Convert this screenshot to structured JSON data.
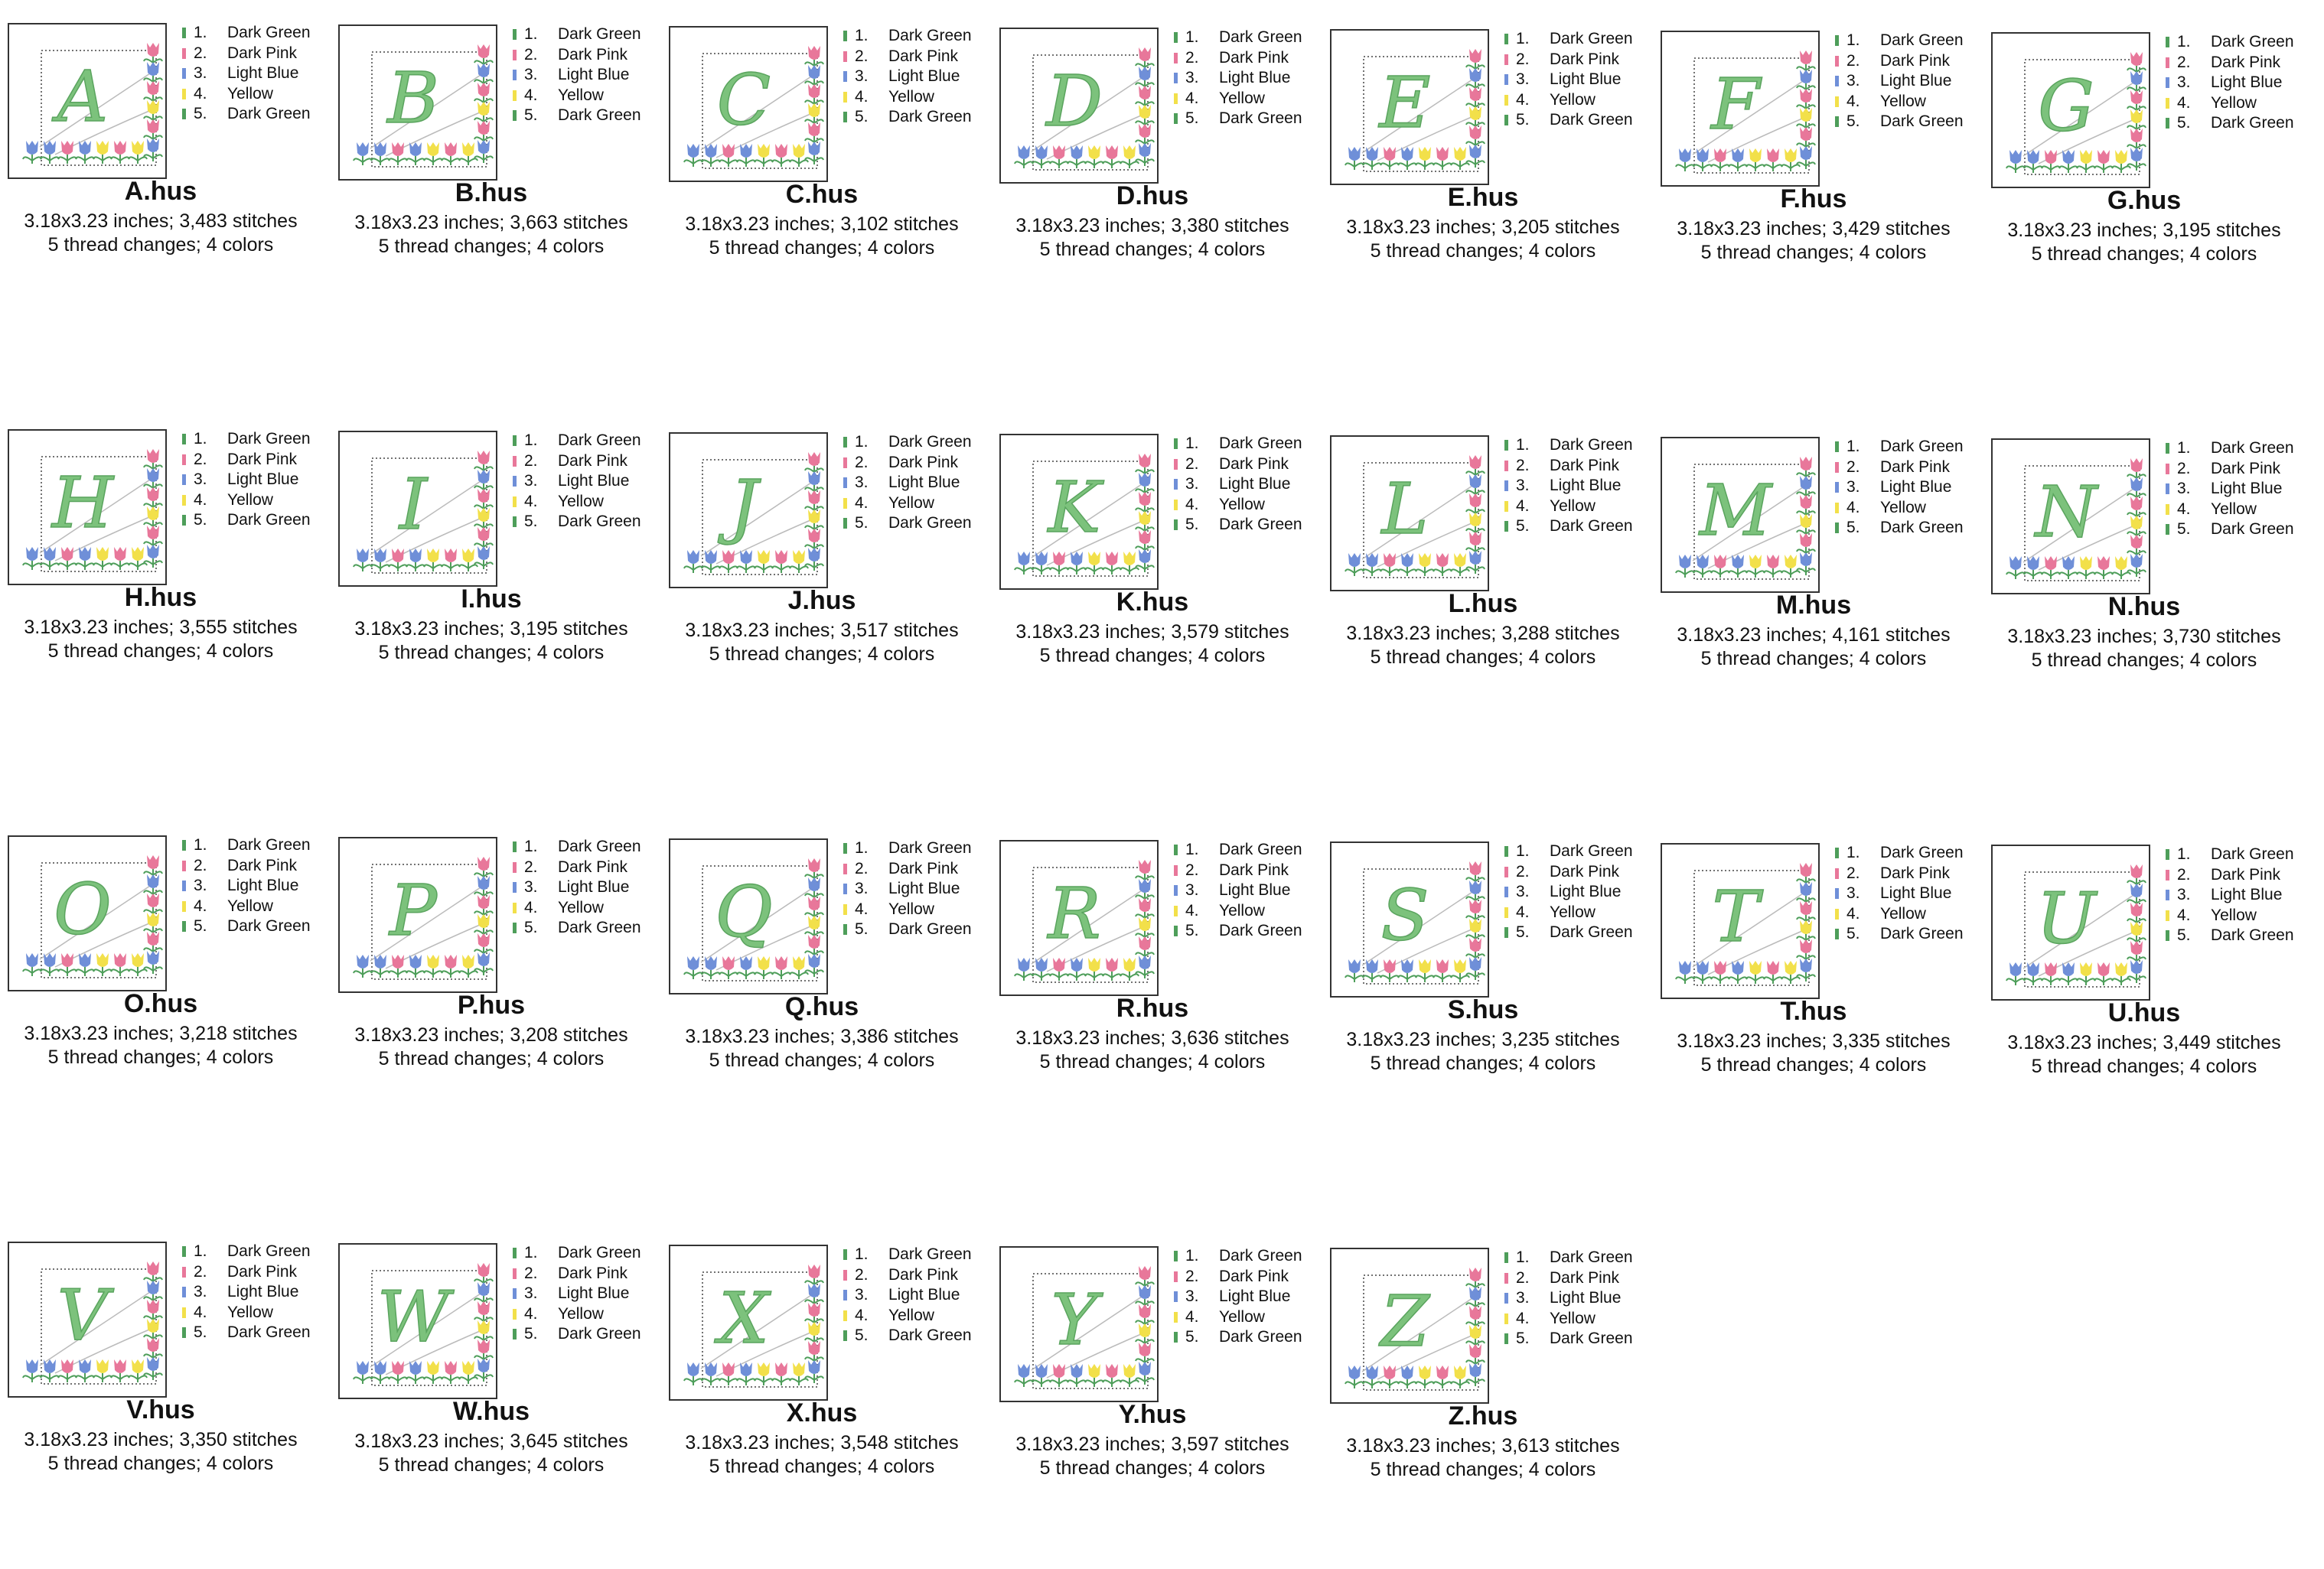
{
  "thread_palette": {
    "Dark Green": "#4e9e5a",
    "Dark Pink": "#e8779a",
    "Light Blue": "#6f8fd8",
    "Yellow": "#f2e04a"
  },
  "letter_color": "#7cc27c",
  "threads": [
    {
      "number": "1.",
      "name": "Dark Green"
    },
    {
      "number": "2.",
      "name": "Dark Pink"
    },
    {
      "number": "3.",
      "name": "Light Blue"
    },
    {
      "number": "4.",
      "name": "Yellow"
    },
    {
      "number": "5.",
      "name": "Dark Green"
    }
  ],
  "designs": [
    {
      "letter": "A",
      "file": "A.hus",
      "size_stitches": "3.18x3.23 inches; 3,483 stitches",
      "changes": "5 thread changes; 4 colors"
    },
    {
      "letter": "B",
      "file": "B.hus",
      "size_stitches": "3.18x3.23 inches; 3,663 stitches",
      "changes": "5 thread changes; 4 colors"
    },
    {
      "letter": "C",
      "file": "C.hus",
      "size_stitches": "3.18x3.23 inches; 3,102 stitches",
      "changes": "5 thread changes; 4 colors"
    },
    {
      "letter": "D",
      "file": "D.hus",
      "size_stitches": "3.18x3.23 inches; 3,380 stitches",
      "changes": "5 thread changes; 4 colors"
    },
    {
      "letter": "E",
      "file": "E.hus",
      "size_stitches": "3.18x3.23 inches; 3,205 stitches",
      "changes": "5 thread changes; 4 colors"
    },
    {
      "letter": "F",
      "file": "F.hus",
      "size_stitches": "3.18x3.23 inches; 3,429 stitches",
      "changes": "5 thread changes; 4 colors"
    },
    {
      "letter": "G",
      "file": "G.hus",
      "size_stitches": "3.18x3.23 inches; 3,195 stitches",
      "changes": "5 thread changes; 4 colors"
    },
    {
      "letter": "H",
      "file": "H.hus",
      "size_stitches": "3.18x3.23 inches; 3,555 stitches",
      "changes": "5 thread changes; 4 colors"
    },
    {
      "letter": "I",
      "file": "I.hus",
      "size_stitches": "3.18x3.23 inches; 3,195 stitches",
      "changes": "5 thread changes; 4 colors"
    },
    {
      "letter": "J",
      "file": "J.hus",
      "size_stitches": "3.18x3.23 inches; 3,517 stitches",
      "changes": "5 thread changes; 4 colors"
    },
    {
      "letter": "K",
      "file": "K.hus",
      "size_stitches": "3.18x3.23 inches; 3,579 stitches",
      "changes": "5 thread changes; 4 colors"
    },
    {
      "letter": "L",
      "file": "L.hus",
      "size_stitches": "3.18x3.23 inches; 3,288 stitches",
      "changes": "5 thread changes; 4 colors"
    },
    {
      "letter": "M",
      "file": "M.hus",
      "size_stitches": "3.18x3.23 inches; 4,161 stitches",
      "changes": "5 thread changes; 4 colors"
    },
    {
      "letter": "N",
      "file": "N.hus",
      "size_stitches": "3.18x3.23 inches; 3,730 stitches",
      "changes": "5 thread changes; 4 colors"
    },
    {
      "letter": "O",
      "file": "O.hus",
      "size_stitches": "3.18x3.23 inches; 3,218 stitches",
      "changes": "5 thread changes; 4 colors"
    },
    {
      "letter": "P",
      "file": "P.hus",
      "size_stitches": "3.18x3.23 inches; 3,208 stitches",
      "changes": "5 thread changes; 4 colors"
    },
    {
      "letter": "Q",
      "file": "Q.hus",
      "size_stitches": "3.18x3.23 inches; 3,386 stitches",
      "changes": "5 thread changes; 4 colors"
    },
    {
      "letter": "R",
      "file": "R.hus",
      "size_stitches": "3.18x3.23 inches; 3,636 stitches",
      "changes": "5 thread changes; 4 colors"
    },
    {
      "letter": "S",
      "file": "S.hus",
      "size_stitches": "3.18x3.23 inches; 3,235 stitches",
      "changes": "5 thread changes; 4 colors"
    },
    {
      "letter": "T",
      "file": "T.hus",
      "size_stitches": "3.18x3.23 inches; 3,335 stitches",
      "changes": "5 thread changes; 4 colors"
    },
    {
      "letter": "U",
      "file": "U.hus",
      "size_stitches": "3.18x3.23 inches; 3,449 stitches",
      "changes": "5 thread changes; 4 colors"
    },
    {
      "letter": "V",
      "file": "V.hus",
      "size_stitches": "3.18x3.23 inches; 3,350 stitches",
      "changes": "5 thread changes; 4 colors"
    },
    {
      "letter": "W",
      "file": "W.hus",
      "size_stitches": "3.18x3.23 inches; 3,645 stitches",
      "changes": "5 thread changes; 4 colors"
    },
    {
      "letter": "X",
      "file": "X.hus",
      "size_stitches": "3.18x3.23 inches; 3,548 stitches",
      "changes": "5 thread changes; 4 colors"
    },
    {
      "letter": "Y",
      "file": "Y.hus",
      "size_stitches": "3.18x3.23 inches; 3,597 stitches",
      "changes": "5 thread changes; 4 colors"
    },
    {
      "letter": "Z",
      "file": "Z.hus",
      "size_stitches": "3.18x3.23 inches; 3,613 stitches",
      "changes": "5 thread changes; 4 colors"
    }
  ]
}
